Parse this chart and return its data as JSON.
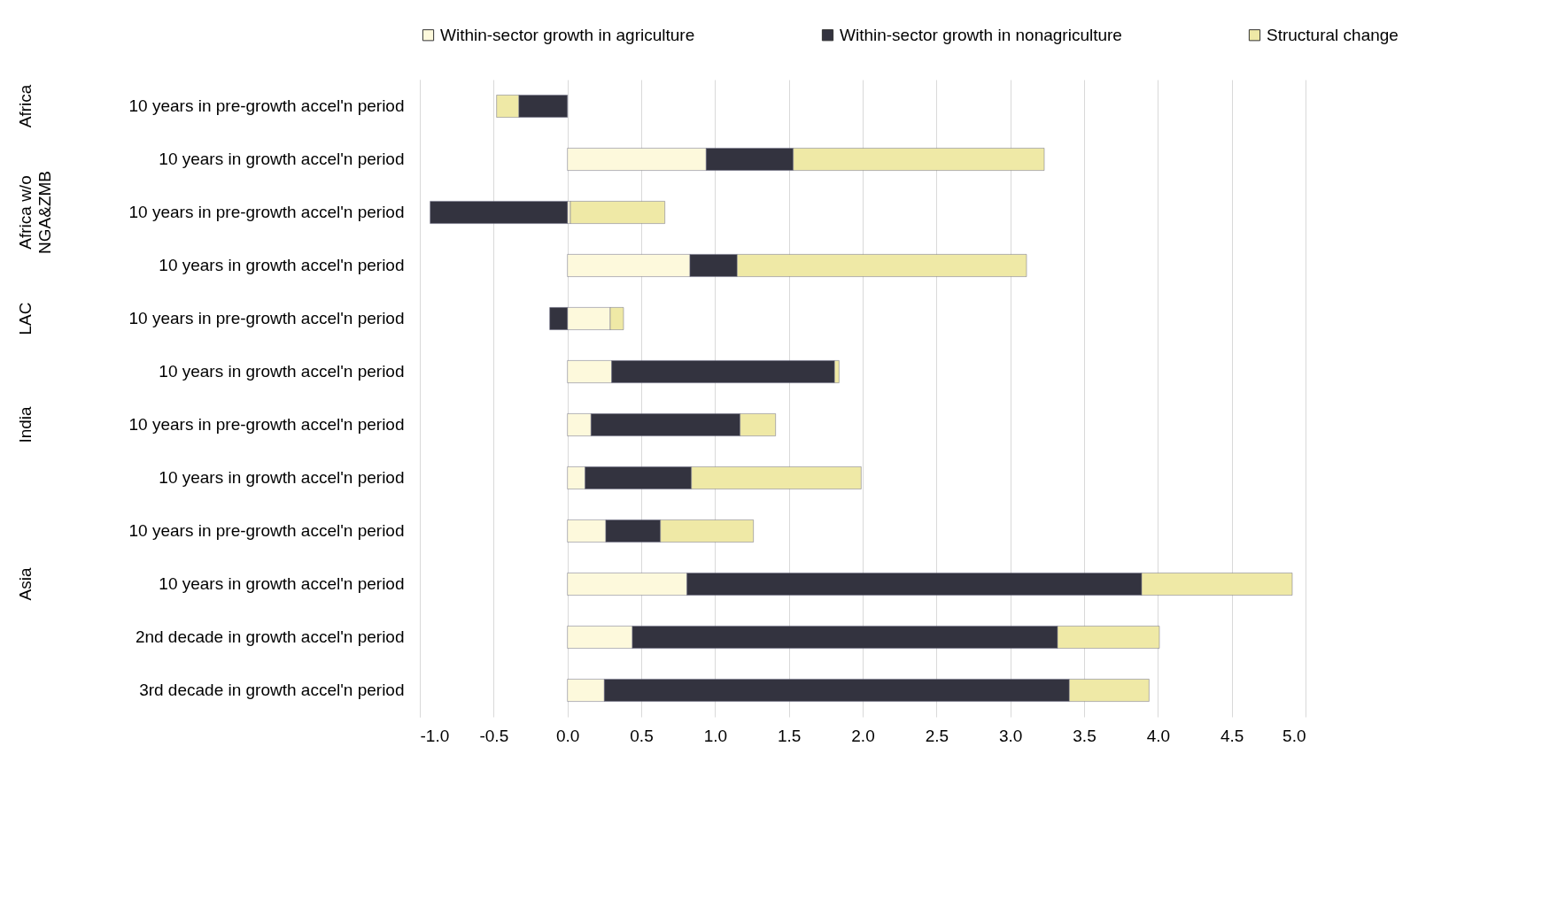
{
  "chart_data": {
    "type": "bar",
    "orientation": "horizontal",
    "stacked": true,
    "categories": [
      "10 years in pre-growth accel'n period",
      "10 years in growth accel'n period",
      "10 years in pre-growth accel'n period",
      "10 years in growth accel'n period",
      "10 years in pre-growth accel'n period",
      "10 years in growth accel'n period",
      "10 years in pre-growth accel'n period",
      "10 years in growth accel'n period",
      "10 years in pre-growth accel'n period",
      "10 years in growth accel'n period",
      "2nd decade in growth accel'n period",
      "3rd decade in growth accel'n period"
    ],
    "series": [
      {
        "name": "Within-sector growth in agriculture",
        "color": "#fdf9dc",
        "values": [
          null,
          0.94,
          0.02,
          0.83,
          0.29,
          0.3,
          0.16,
          0.12,
          0.26,
          0.81,
          0.44,
          0.25
        ]
      },
      {
        "name": "Within-sector growth in nonagriculture",
        "color": "#33333f",
        "values": [
          -0.33,
          0.59,
          -0.93,
          0.32,
          -0.12,
          1.51,
          1.01,
          0.72,
          0.37,
          3.08,
          2.88,
          3.15
        ]
      },
      {
        "name": "Structural change",
        "color": "#efe9a6",
        "values": [
          -0.15,
          1.7,
          0.64,
          1.96,
          0.09,
          0.03,
          0.24,
          1.15,
          0.63,
          1.02,
          0.69,
          0.54
        ]
      }
    ],
    "annotations": [
      "Africa",
      "Africa w/o NGA&ZMB",
      "LAC",
      "India",
      "Asia"
    ],
    "xlim": [
      -1,
      5
    ],
    "xticks": [
      {
        "value": -1,
        "label": "-1.0"
      },
      {
        "value": -0.5,
        "label": "-0.5"
      },
      {
        "value": 0,
        "label": "0.0"
      },
      0.5,
      {
        "value": 1,
        "label": "1.0"
      },
      1.5,
      {
        "value": 2,
        "label": "2.0"
      },
      2.5,
      {
        "value": 3,
        "label": "3.0"
      },
      3.5,
      {
        "value": 4,
        "label": "4.0"
      },
      4.5,
      {
        "value": 5,
        "label": "5.0"
      }
    ],
    "grid": "x",
    "legend": "top"
  }
}
